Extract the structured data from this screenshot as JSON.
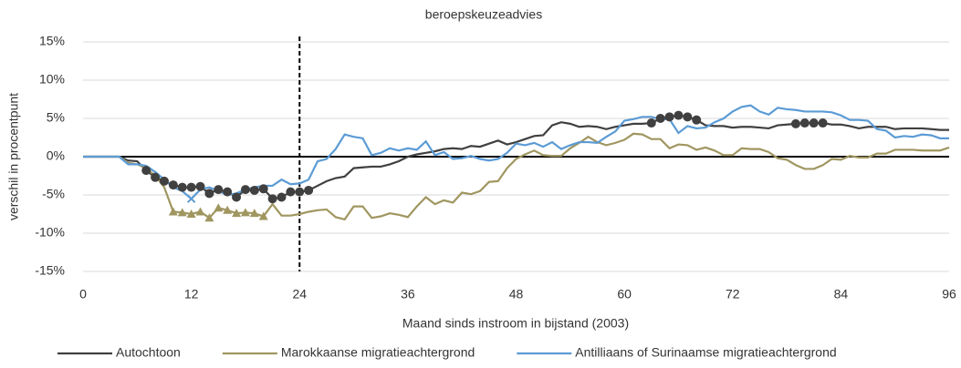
{
  "chart_data": {
    "type": "line",
    "title": "beroepskeuzeadvies",
    "x_label": "Maand sinds instroom in bijstand (2003)",
    "y_label": "verschil in procentpunt",
    "x": [
      0,
      1,
      2,
      3,
      4,
      5,
      6,
      7,
      8,
      9,
      10,
      11,
      12,
      13,
      14,
      15,
      16,
      17,
      18,
      19,
      20,
      21,
      22,
      23,
      24,
      25,
      26,
      27,
      28,
      29,
      30,
      31,
      32,
      33,
      34,
      35,
      36,
      37,
      38,
      39,
      40,
      41,
      42,
      43,
      44,
      45,
      46,
      47,
      48,
      49,
      50,
      51,
      52,
      53,
      54,
      55,
      56,
      57,
      58,
      59,
      60,
      61,
      62,
      63,
      64,
      65,
      66,
      67,
      68,
      69,
      70,
      71,
      72,
      73,
      74,
      75,
      76,
      77,
      78,
      79,
      80,
      81,
      82,
      83,
      84,
      85,
      86,
      87,
      88,
      89,
      90,
      91,
      92,
      93,
      94,
      95,
      96
    ],
    "xlim": [
      0,
      96
    ],
    "xticks": [
      0,
      12,
      24,
      36,
      48,
      60,
      72,
      84,
      96
    ],
    "ylim": [
      -15,
      15
    ],
    "yticks": [
      {
        "value": -15,
        "label": "-15%"
      },
      {
        "value": -10,
        "label": "-10%"
      },
      {
        "value": -5,
        "label": "-5%"
      },
      {
        "value": 0,
        "label": "0%"
      },
      {
        "value": 5,
        "label": "5%"
      },
      {
        "value": 10,
        "label": "10%"
      },
      {
        "value": 15,
        "label": "15%"
      }
    ],
    "grid": true,
    "vline": 24,
    "legend": "bottom",
    "series": [
      {
        "name": "Autochtoon",
        "color": "#404040",
        "marker": "circle",
        "markers": [
          7,
          8,
          9,
          10,
          11,
          12,
          13,
          14,
          15,
          16,
          17,
          18,
          19,
          20,
          21,
          22,
          23,
          24,
          25,
          63,
          64,
          65,
          66,
          67,
          68,
          79,
          80,
          81,
          82
        ],
        "values": [
          0,
          0,
          0,
          0,
          0,
          -0.5,
          -0.6,
          -1.8,
          -2.7,
          -3.2,
          -3.7,
          -4.0,
          -4.0,
          -3.9,
          -4.8,
          -4.3,
          -4.6,
          -5.3,
          -4.3,
          -4.4,
          -4.2,
          -5.5,
          -5.3,
          -4.6,
          -4.6,
          -4.4,
          -3.8,
          -3.2,
          -2.8,
          -2.6,
          -1.5,
          -1.4,
          -1.3,
          -1.3,
          -1.0,
          -0.6,
          0.0,
          0.3,
          0.5,
          0.7,
          1.0,
          1.1,
          1.0,
          1.4,
          1.3,
          1.7,
          2.1,
          1.6,
          1.9,
          2.3,
          2.7,
          2.8,
          4.1,
          4.5,
          4.3,
          3.9,
          4.0,
          3.9,
          3.6,
          3.9,
          4.1,
          4.3,
          4.3,
          4.4,
          5.0,
          5.2,
          5.4,
          5.2,
          4.8,
          4.1,
          4.0,
          4.0,
          3.8,
          3.9,
          3.9,
          3.8,
          3.7,
          4.1,
          4.2,
          4.3,
          4.4,
          4.4,
          4.4,
          4.2,
          4.2,
          4.0,
          3.7,
          3.9,
          3.9,
          3.9,
          3.6,
          3.7,
          3.7,
          3.7,
          3.6,
          3.5,
          3.5
        ]
      },
      {
        "name": "Marokkaanse migratieachtergrond",
        "color": "#a09660",
        "marker": "triangle",
        "markers": [
          10,
          11,
          12,
          13,
          14,
          15,
          16,
          17,
          18,
          19,
          20
        ],
        "values": [
          0,
          0,
          0,
          0,
          0,
          -0.8,
          -1.0,
          -1.5,
          -2.5,
          -4.0,
          -7.2,
          -7.3,
          -7.5,
          -7.2,
          -8.0,
          -6.7,
          -7.0,
          -7.4,
          -7.3,
          -7.4,
          -7.8,
          -6.2,
          -7.7,
          -7.7,
          -7.5,
          -7.2,
          -7.0,
          -6.9,
          -7.9,
          -8.2,
          -6.5,
          -6.5,
          -8.0,
          -7.8,
          -7.4,
          -7.6,
          -7.9,
          -6.5,
          -5.3,
          -6.2,
          -5.7,
          -6.0,
          -4.7,
          -4.9,
          -4.5,
          -3.3,
          -3.2,
          -1.5,
          -0.3,
          0.3,
          0.8,
          0.2,
          0.1,
          0.1,
          1.1,
          1.8,
          2.6,
          1.9,
          1.5,
          1.8,
          2.2,
          3.0,
          2.9,
          2.3,
          2.3,
          1.1,
          1.6,
          1.5,
          0.9,
          1.2,
          0.8,
          0.2,
          0.2,
          1.1,
          1.0,
          1.0,
          0.6,
          -0.2,
          -0.4,
          -1.1,
          -1.6,
          -1.6,
          -1.1,
          -0.3,
          -0.4,
          0.1,
          -0.1,
          -0.1,
          0.4,
          0.4,
          0.9,
          0.9,
          0.9,
          0.8,
          0.8,
          0.8,
          1.2
        ]
      },
      {
        "name": "Antilliaans of Surinaamse migratieachtergrond",
        "color": "#5b9bd5",
        "marker": "x",
        "markers": [
          12
        ],
        "values": [
          0,
          0,
          0,
          0,
          0,
          -1.0,
          -1.0,
          -1.2,
          -2.0,
          -3.0,
          -4.0,
          -4.5,
          -5.5,
          -4.3,
          -4.0,
          -4.5,
          -5.0,
          -4.8,
          -4.3,
          -4.0,
          -3.8,
          -3.8,
          -3.0,
          -3.6,
          -3.5,
          -3.0,
          -0.6,
          -0.3,
          1.0,
          2.9,
          2.6,
          2.4,
          0.2,
          0.5,
          1.1,
          0.8,
          1.1,
          0.9,
          2.0,
          0.2,
          0.6,
          -0.3,
          -0.2,
          0.1,
          -0.3,
          -0.5,
          -0.3,
          0.5,
          1.7,
          1.5,
          1.8,
          1.3,
          1.9,
          1.0,
          1.5,
          1.9,
          1.9,
          1.8,
          2.6,
          3.3,
          4.7,
          4.9,
          5.2,
          5.2,
          4.9,
          4.9,
          3.1,
          4.0,
          3.7,
          3.8,
          4.5,
          5.0,
          5.9,
          6.5,
          6.7,
          5.9,
          5.5,
          6.4,
          6.2,
          6.1,
          5.9,
          5.9,
          5.9,
          5.8,
          5.4,
          4.8,
          4.8,
          4.7,
          3.6,
          3.4,
          2.5,
          2.7,
          2.6,
          2.9,
          2.8,
          2.4,
          2.4
        ]
      }
    ]
  }
}
